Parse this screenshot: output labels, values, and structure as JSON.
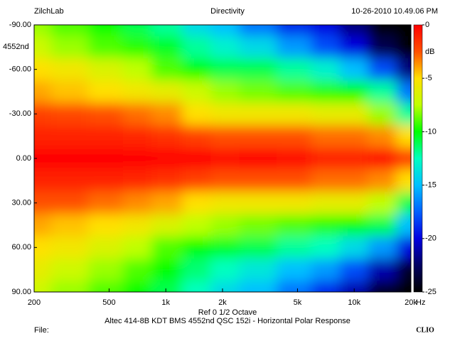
{
  "chart_data": {
    "type": "heatmap",
    "header_left": "ZilchLab",
    "title": "Directivity",
    "header_right": "10-26-2010 10.49.06 PM",
    "annotation": "4552nd",
    "subtitle": "Ref 0   1/2 Octave",
    "caption": "Altec 414-8B KDT BMS 4552nd QSC 152i - Horizontal Polar Response",
    "footer_left": "File:",
    "footer_right": "CLIO",
    "x_unit": "Hz",
    "z_label": "dB",
    "log_x": true,
    "x": [
      200,
      300,
      500,
      700,
      1000,
      1500,
      2000,
      3000,
      5000,
      7000,
      10000,
      14000,
      20000
    ],
    "y": [
      -90,
      -75,
      -60,
      -45,
      -30,
      -15,
      0,
      15,
      30,
      45,
      60,
      75,
      90
    ],
    "z": [
      [
        -8,
        -9,
        -10,
        -11,
        -12,
        -14,
        -15,
        -17,
        -19,
        -20,
        -22,
        -25,
        -25
      ],
      [
        -7,
        -8,
        -9,
        -9.5,
        -10.5,
        -12,
        -13,
        -14,
        -16,
        -18,
        -20,
        -23,
        -25
      ],
      [
        -5,
        -5.5,
        -6.5,
        -7.5,
        -9,
        -10,
        -11,
        -11,
        -12,
        -13,
        -15,
        -18,
        -22
      ],
      [
        -4,
        -4.5,
        -5,
        -5.5,
        -6,
        -7,
        -8,
        -8.5,
        -9,
        -9.5,
        -10,
        -12,
        -17
      ],
      [
        -2,
        -2.2,
        -2.5,
        -3,
        -3.5,
        -5,
        -5.5,
        -5.5,
        -5.5,
        -6,
        -6,
        -8,
        -12
      ],
      [
        -1,
        -1,
        -1,
        -1.2,
        -1.5,
        -2,
        -2.5,
        -2.5,
        -2.5,
        -3,
        -3,
        -3.5,
        -5
      ],
      [
        0,
        0,
        0,
        0,
        0,
        0,
        -0.5,
        0,
        -0.5,
        -1,
        -1,
        -0.5,
        -2
      ],
      [
        -1,
        -1,
        -1,
        -1.2,
        -1.5,
        -2,
        -2.5,
        -2.5,
        -2.5,
        -3,
        -3,
        -3.5,
        -5
      ],
      [
        -2.5,
        -2.5,
        -3,
        -3.5,
        -4,
        -5,
        -5.5,
        -5.5,
        -5.5,
        -6,
        -6,
        -7.5,
        -11
      ],
      [
        -4,
        -4.5,
        -5,
        -5.5,
        -6.5,
        -7.5,
        -8,
        -8.5,
        -9,
        -9.5,
        -10,
        -11,
        -15
      ],
      [
        -5,
        -5.5,
        -6.5,
        -7.5,
        -9,
        -10,
        -10.5,
        -11,
        -12,
        -12.5,
        -14,
        -16,
        -20
      ],
      [
        -6,
        -7,
        -8,
        -9,
        -10,
        -11.5,
        -12.5,
        -13.5,
        -15,
        -16,
        -18,
        -21,
        -24
      ],
      [
        -7,
        -8,
        -9,
        -10,
        -11,
        -12.5,
        -14,
        -15,
        -17,
        -19,
        -21,
        -24,
        -25
      ]
    ],
    "xlim": [
      200,
      20000
    ],
    "xticks": [
      200,
      500,
      {
        "value": 1000,
        "label": "1k"
      },
      {
        "value": 2000,
        "label": "2k"
      },
      {
        "value": 5000,
        "label": "5k"
      },
      {
        "value": 10000,
        "label": "10k"
      },
      {
        "value": 20000,
        "label": "20k"
      }
    ],
    "ylim": [
      -90,
      90
    ],
    "yticks": [
      {
        "value": -90,
        "label": "-90.00"
      },
      {
        "value": -60,
        "label": "-60.00"
      },
      {
        "value": -30,
        "label": "-30.00"
      },
      {
        "value": 0,
        "label": "0.00"
      },
      {
        "value": 30,
        "label": "30.00"
      },
      {
        "value": 60,
        "label": "60.00"
      },
      {
        "value": 90,
        "label": "90.00"
      }
    ],
    "zlim": [
      0,
      -25
    ],
    "zticks": [
      0,
      -5,
      -10,
      -15,
      -20,
      -25
    ],
    "colormap": [
      "#ff0000",
      "#ff5000",
      "#ffe000",
      "#c0ff00",
      "#00ff00",
      "#00ffc0",
      "#00c0ff",
      "#0060ff",
      "#0000e0",
      "#000060",
      "#000000"
    ]
  }
}
